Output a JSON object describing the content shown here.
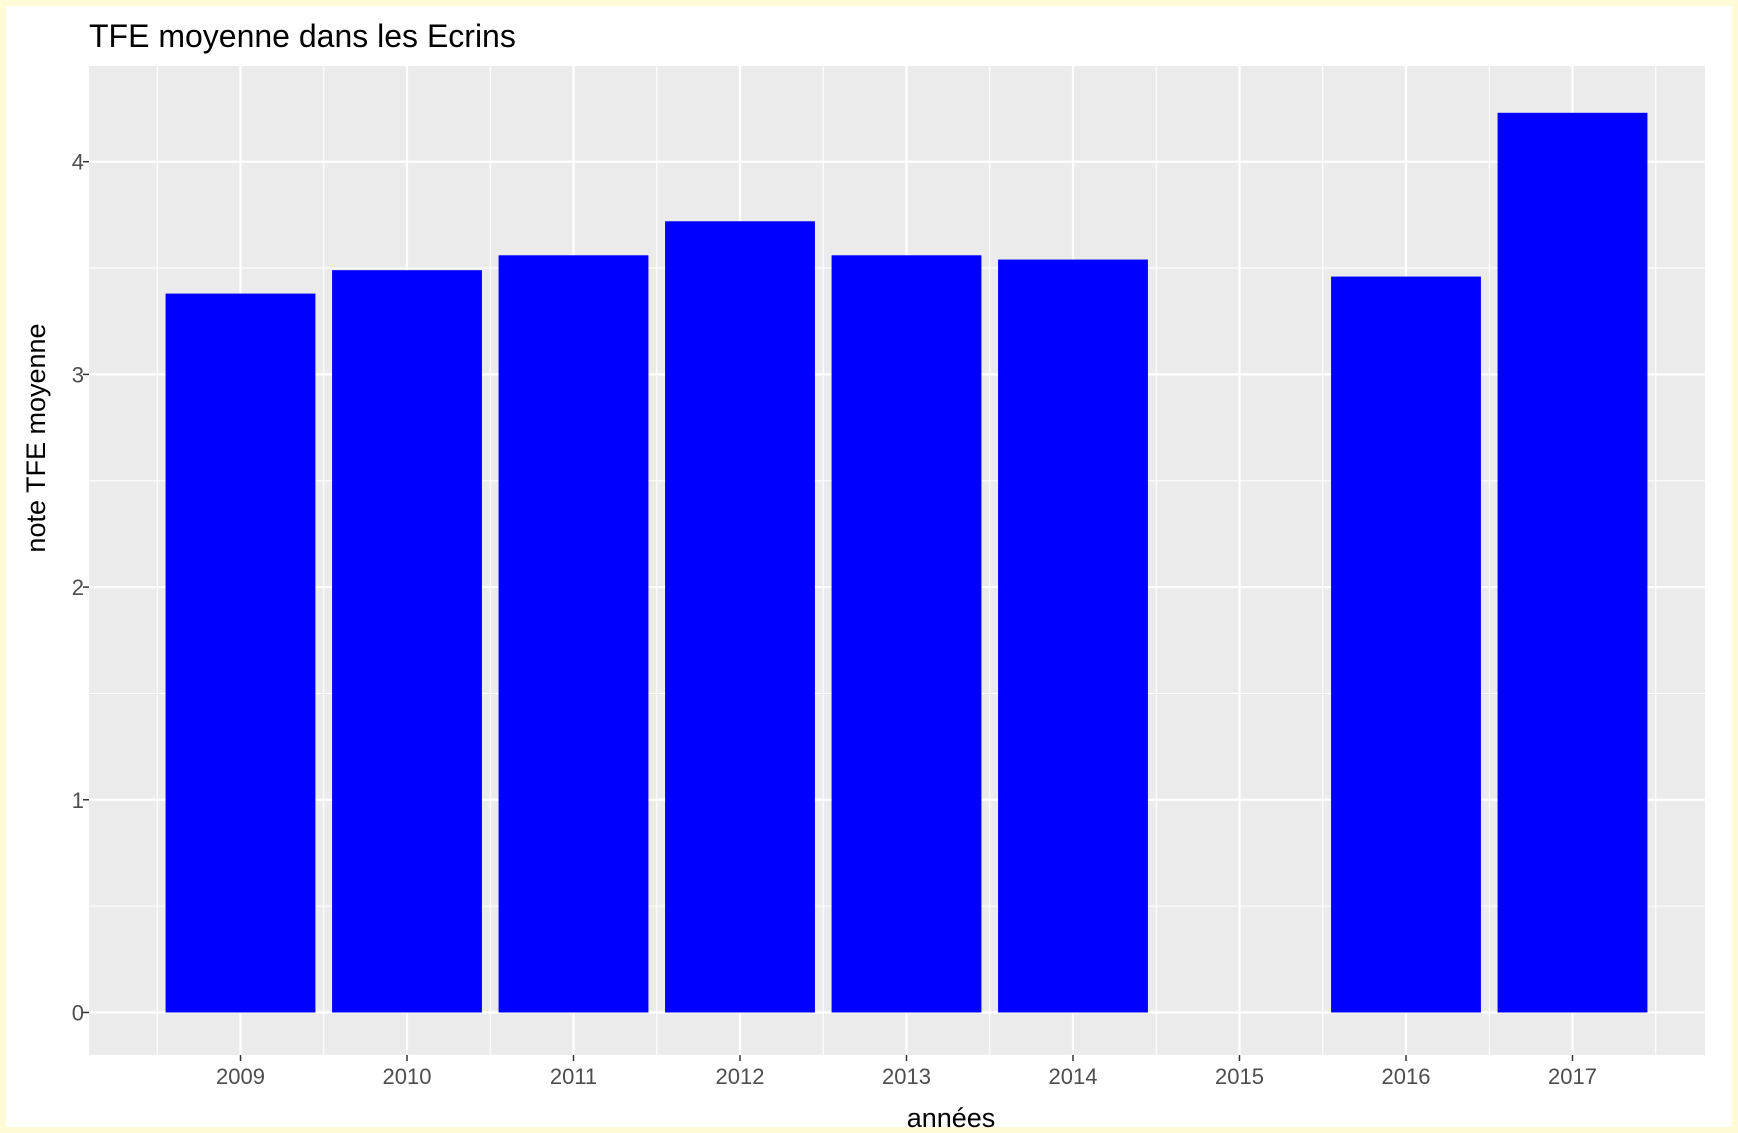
{
  "chart_data": {
    "type": "bar",
    "title": "TFE moyenne dans les Ecrins",
    "xlabel": "années",
    "ylabel": "note TFE moyenne",
    "categories": [
      "2009",
      "2010",
      "2011",
      "2012",
      "2013",
      "2014",
      "2015",
      "2016",
      "2017"
    ],
    "values": [
      3.38,
      3.49,
      3.56,
      3.72,
      3.56,
      3.54,
      null,
      3.46,
      4.23
    ],
    "ylim": [
      -0.2,
      4.45
    ],
    "yticks": [
      "0",
      "1",
      "2",
      "3",
      "4"
    ],
    "grid": true,
    "legend": "none",
    "colors": {
      "bar": "#0000ff",
      "panel": "#ebebeb",
      "grid": "#ffffff",
      "background": "#ffffff",
      "border": "#fffbd6"
    }
  }
}
